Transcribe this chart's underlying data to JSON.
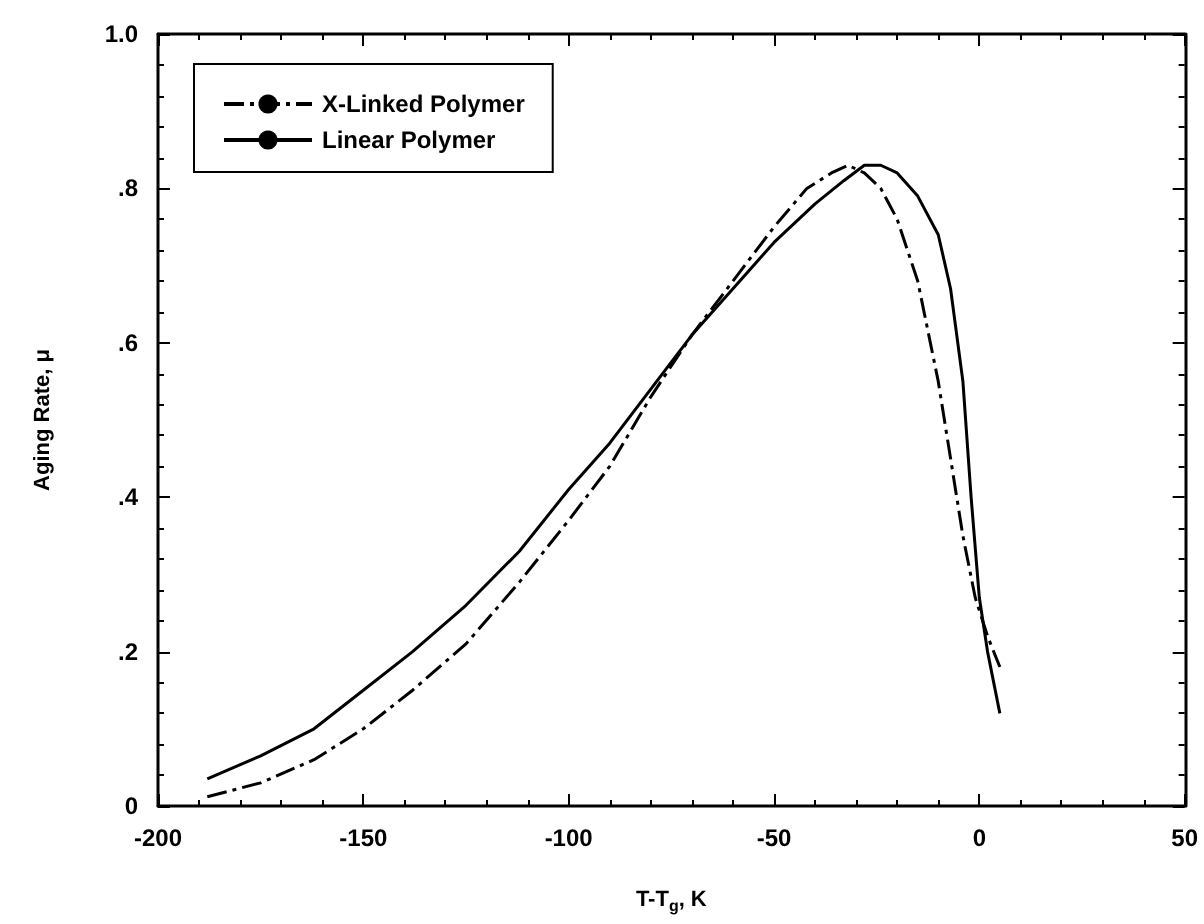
{
  "chart_data": {
    "type": "line",
    "xlabel": "T-T$_{g}$, K",
    "ylabel": "Aging Rate, μ",
    "xlim": [
      -200,
      50
    ],
    "xticks": [
      -200,
      -150,
      -100,
      -50,
      0,
      50
    ],
    "ylim": [
      0,
      1
    ],
    "yticks": [
      0,
      {
        "value": 0.2,
        "label": ".2"
      },
      {
        "value": 0.4,
        "label": ".4"
      },
      {
        "value": 0.6,
        "label": ".6"
      },
      {
        "value": 0.8,
        "label": ".8"
      },
      {
        "value": 1,
        "label": "1.0"
      }
    ],
    "grid": false,
    "legend": "top left",
    "marker": "none",
    "series": [
      {
        "name": "X-Linked Polymer",
        "color": "#000000",
        "line_style": "dashdot",
        "x": [
          -188,
          -175,
          -162,
          -150,
          -138,
          -125,
          -112,
          -100,
          -90,
          -80,
          -70,
          -60,
          -50,
          -42,
          -36,
          -32,
          -28,
          -24,
          -20,
          -15,
          -10,
          -7,
          -4,
          -1,
          2,
          5
        ],
        "values": [
          0.012,
          0.03,
          0.06,
          0.1,
          0.15,
          0.21,
          0.29,
          0.37,
          0.44,
          0.53,
          0.61,
          0.68,
          0.75,
          0.8,
          0.82,
          0.83,
          0.82,
          0.8,
          0.76,
          0.68,
          0.55,
          0.45,
          0.35,
          0.27,
          0.22,
          0.18
        ]
      },
      {
        "name": "Linear Polymer",
        "color": "#000000",
        "line_style": "solid",
        "x": [
          -188,
          -175,
          -162,
          -150,
          -138,
          -125,
          -112,
          -100,
          -90,
          -80,
          -70,
          -60,
          -50,
          -40,
          -33,
          -28,
          -24,
          -20,
          -15,
          -10,
          -7,
          -4,
          -2,
          0,
          2,
          5
        ],
        "values": [
          0.035,
          0.065,
          0.1,
          0.15,
          0.2,
          0.26,
          0.33,
          0.41,
          0.47,
          0.54,
          0.61,
          0.67,
          0.73,
          0.78,
          0.81,
          0.83,
          0.83,
          0.82,
          0.79,
          0.74,
          0.67,
          0.55,
          0.4,
          0.27,
          0.2,
          0.12
        ]
      }
    ]
  }
}
